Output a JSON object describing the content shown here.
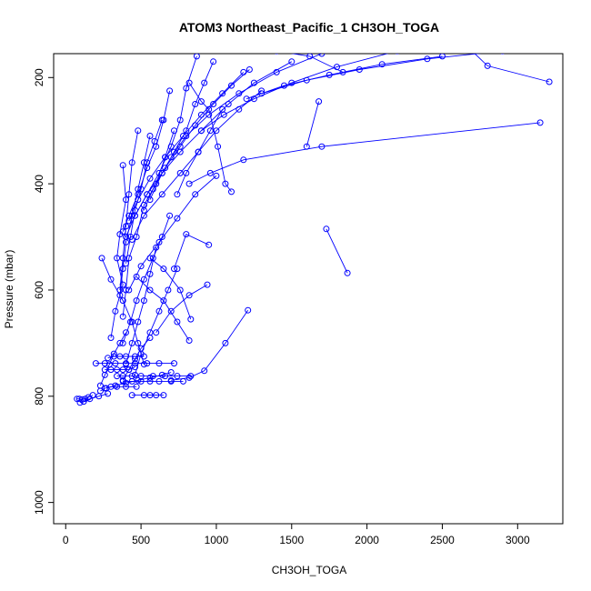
{
  "chart_data": {
    "type": "line",
    "title": "ATOM3 Northeast_Pacific_1 CH3OH_TOGA",
    "xlabel": "CH3OH_TOGA",
    "ylabel": "Pressure (mbar)",
    "xlim": [
      -80,
      3300
    ],
    "ylim": [
      1040,
      155
    ],
    "y_inverted": true,
    "x_ticks": [
      0,
      500,
      1000,
      1500,
      2000,
      2500,
      3000
    ],
    "y_ticks": [
      200,
      400,
      600,
      800,
      1000
    ],
    "grid": false,
    "legend": "none",
    "marker": "open-circle",
    "color": "#0000ff",
    "series": [
      {
        "values": [
          [
            3210,
            208
          ],
          [
            2800,
            178
          ],
          [
            2660,
            140
          ]
        ]
      },
      {
        "values": [
          [
            3150,
            285
          ],
          [
            1700,
            330
          ],
          [
            1180,
            355
          ],
          [
            960,
            380
          ],
          [
            820,
            400
          ]
        ]
      },
      {
        "values": [
          [
            1840,
            190
          ],
          [
            1620,
            160
          ],
          [
            1400,
            150
          ]
        ]
      },
      {
        "values": [
          [
            1680,
            245
          ],
          [
            1600,
            330
          ]
        ]
      },
      {
        "values": [
          [
            1870,
            568
          ],
          [
            1730,
            485
          ]
        ]
      },
      {
        "values": [
          [
            1210,
            638
          ],
          [
            1060,
            700
          ],
          [
            920,
            752
          ],
          [
            820,
            765
          ],
          [
            700,
            770
          ]
        ]
      },
      {
        "values": [
          [
            1100,
            415
          ],
          [
            1060,
            400
          ],
          [
            1010,
            330
          ],
          [
            950,
            260
          ],
          [
            900,
            245
          ],
          [
            820,
            210
          ]
        ]
      },
      {
        "values": [
          [
            950,
            515
          ],
          [
            800,
            495
          ],
          [
            720,
            560
          ]
        ]
      },
      {
        "values": [
          [
            940,
            590
          ],
          [
            820,
            610
          ],
          [
            700,
            640
          ],
          [
            600,
            680
          ]
        ]
      },
      {
        "values": [
          [
            830,
            655
          ],
          [
            760,
            600
          ],
          [
            650,
            560
          ],
          [
            560,
            540
          ]
        ]
      },
      {
        "values": [
          [
            820,
            695
          ],
          [
            740,
            660
          ],
          [
            650,
            620
          ],
          [
            560,
            600
          ],
          [
            470,
            575
          ]
        ]
      },
      {
        "values": [
          [
            1000,
            385
          ],
          [
            860,
            420
          ],
          [
            740,
            465
          ],
          [
            620,
            510
          ],
          [
            500,
            555
          ],
          [
            420,
            600
          ]
        ]
      },
      {
        "values": [
          [
            1300,
            225
          ],
          [
            1150,
            260
          ],
          [
            1000,
            300
          ],
          [
            880,
            340
          ],
          [
            760,
            380
          ],
          [
            640,
            420
          ],
          [
            520,
            460
          ],
          [
            440,
            505
          ]
        ]
      },
      {
        "values": [
          [
            1500,
            170
          ],
          [
            1250,
            210
          ],
          [
            1080,
            250
          ],
          [
            900,
            300
          ],
          [
            760,
            340
          ],
          [
            640,
            380
          ],
          [
            540,
            420
          ],
          [
            460,
            460
          ]
        ]
      },
      {
        "values": [
          [
            1180,
            190
          ],
          [
            1040,
            230
          ],
          [
            900,
            270
          ],
          [
            780,
            310
          ],
          [
            660,
            350
          ],
          [
            560,
            390
          ],
          [
            480,
            430
          ],
          [
            420,
            470
          ]
        ]
      },
      {
        "values": [
          [
            870,
            160
          ],
          [
            800,
            220
          ],
          [
            760,
            280
          ],
          [
            700,
            330
          ],
          [
            620,
            380
          ],
          [
            540,
            420
          ],
          [
            460,
            460
          ],
          [
            400,
            500
          ]
        ]
      },
      {
        "values": [
          [
            690,
            225
          ],
          [
            650,
            280
          ],
          [
            600,
            330
          ],
          [
            540,
            370
          ],
          [
            480,
            420
          ],
          [
            420,
            460
          ],
          [
            380,
            490
          ]
        ]
      },
      {
        "values": [
          [
            980,
            170
          ],
          [
            920,
            210
          ],
          [
            860,
            250
          ],
          [
            800,
            300
          ],
          [
            720,
            340
          ],
          [
            640,
            380
          ],
          [
            560,
            430
          ]
        ]
      },
      {
        "values": [
          [
            380,
            365
          ],
          [
            400,
            430
          ],
          [
            360,
            495
          ],
          [
            340,
            540
          ],
          [
            380,
            590
          ],
          [
            330,
            640
          ],
          [
            300,
            690
          ]
        ]
      },
      {
        "values": [
          [
            560,
            310
          ],
          [
            520,
            360
          ],
          [
            480,
            410
          ],
          [
            440,
            460
          ],
          [
            400,
            510
          ],
          [
            380,
            560
          ],
          [
            360,
            610
          ]
        ]
      },
      {
        "values": [
          [
            720,
            300
          ],
          [
            660,
            350
          ],
          [
            600,
            400
          ],
          [
            520,
            440
          ],
          [
            470,
            500
          ],
          [
            420,
            540
          ],
          [
            400,
            600
          ],
          [
            380,
            650
          ]
        ]
      },
      {
        "values": [
          [
            240,
            540
          ],
          [
            300,
            580
          ],
          [
            380,
            620
          ],
          [
            440,
            660
          ],
          [
            480,
            700
          ],
          [
            520,
            740
          ]
        ]
      },
      {
        "values": [
          [
            600,
            520
          ],
          [
            560,
            570
          ],
          [
            520,
            620
          ],
          [
            480,
            660
          ],
          [
            440,
            700
          ],
          [
            400,
            740
          ]
        ]
      },
      {
        "values": [
          [
            740,
            560
          ],
          [
            680,
            600
          ],
          [
            620,
            640
          ],
          [
            560,
            680
          ],
          [
            500,
            720
          ],
          [
            460,
            760
          ]
        ]
      },
      {
        "values": [
          [
            690,
            460
          ],
          [
            640,
            500
          ],
          [
            580,
            540
          ],
          [
            520,
            580
          ],
          [
            470,
            620
          ],
          [
            430,
            660
          ],
          [
            380,
            700
          ]
        ]
      },
      {
        "values": [
          [
            1220,
            185
          ],
          [
            1100,
            215
          ],
          [
            980,
            250
          ],
          [
            860,
            290
          ],
          [
            760,
            330
          ],
          [
            660,
            370
          ],
          [
            580,
            410
          ],
          [
            520,
            450
          ]
        ]
      },
      {
        "values": [
          [
            1700,
            155
          ],
          [
            1400,
            190
          ],
          [
            1150,
            230
          ],
          [
            950,
            270
          ],
          [
            800,
            310
          ],
          [
            700,
            350
          ]
        ]
      },
      {
        "values": [
          [
            2200,
            150
          ],
          [
            1800,
            180
          ],
          [
            1500,
            210
          ],
          [
            1250,
            240
          ],
          [
            1050,
            270
          ],
          [
            900,
            300
          ]
        ]
      },
      {
        "values": [
          [
            2500,
            160
          ],
          [
            2100,
            175
          ],
          [
            1750,
            195
          ],
          [
            1450,
            215
          ],
          [
            1200,
            240
          ]
        ]
      },
      {
        "values": [
          [
            2900,
            150
          ],
          [
            2400,
            165
          ],
          [
            1950,
            185
          ],
          [
            1600,
            205
          ],
          [
            1300,
            230
          ]
        ]
      },
      {
        "values": [
          [
            700,
            755
          ],
          [
            640,
            760
          ],
          [
            560,
            765
          ],
          [
            480,
            770
          ],
          [
            400,
            775
          ],
          [
            330,
            780
          ],
          [
            270,
            785
          ]
        ]
      },
      {
        "values": [
          [
            720,
            738
          ],
          [
            620,
            738
          ],
          [
            540,
            738
          ],
          [
            460,
            738
          ],
          [
            400,
            738
          ],
          [
            330,
            738
          ],
          [
            260,
            738
          ],
          [
            200,
            738
          ]
        ]
      },
      {
        "values": [
          [
            520,
            725
          ],
          [
            460,
            725
          ],
          [
            400,
            725
          ],
          [
            360,
            725
          ],
          [
            320,
            725
          ],
          [
            280,
            728
          ]
        ]
      },
      {
        "values": [
          [
            830,
            762
          ],
          [
            740,
            762
          ],
          [
            660,
            762
          ],
          [
            580,
            762
          ],
          [
            500,
            762
          ],
          [
            440,
            762
          ],
          [
            380,
            762
          ],
          [
            340,
            762
          ]
        ]
      },
      {
        "values": [
          [
            780,
            772
          ],
          [
            700,
            772
          ],
          [
            620,
            772
          ],
          [
            560,
            772
          ],
          [
            500,
            772
          ],
          [
            440,
            772
          ],
          [
            380,
            772
          ]
        ]
      },
      {
        "values": [
          [
            460,
            745
          ],
          [
            420,
            750
          ],
          [
            380,
            750
          ],
          [
            340,
            750
          ],
          [
            300,
            750
          ],
          [
            260,
            750
          ]
        ]
      },
      {
        "values": [
          [
            470,
            782
          ],
          [
            400,
            782
          ],
          [
            340,
            782
          ],
          [
            300,
            782
          ],
          [
            260,
            785
          ],
          [
            230,
            790
          ]
        ]
      },
      {
        "values": [
          [
            650,
            798
          ],
          [
            600,
            798
          ],
          [
            560,
            798
          ],
          [
            520,
            798
          ],
          [
            440,
            798
          ]
        ]
      },
      {
        "values": [
          [
            180,
            798
          ],
          [
            150,
            802
          ],
          [
            130,
            805
          ],
          [
            110,
            806
          ],
          [
            90,
            805
          ],
          [
            75,
            805
          ]
        ]
      },
      {
        "values": [
          [
            280,
            795
          ],
          [
            220,
            800
          ],
          [
            160,
            805
          ],
          [
            120,
            810
          ],
          [
            95,
            812
          ]
        ]
      },
      {
        "values": [
          [
            400,
            680
          ],
          [
            360,
            700
          ],
          [
            320,
            720
          ],
          [
            290,
            740
          ],
          [
            260,
            760
          ],
          [
            230,
            780
          ]
        ]
      },
      {
        "values": [
          [
            560,
            690
          ],
          [
            500,
            710
          ],
          [
            460,
            730
          ],
          [
            420,
            750
          ],
          [
            380,
            770
          ]
        ]
      },
      {
        "values": [
          [
            480,
            300
          ],
          [
            440,
            360
          ],
          [
            420,
            420
          ],
          [
            400,
            480
          ],
          [
            380,
            540
          ],
          [
            360,
            600
          ]
        ]
      },
      {
        "values": [
          [
            640,
            280
          ],
          [
            590,
            320
          ],
          [
            540,
            360
          ],
          [
            500,
            410
          ],
          [
            460,
            450
          ],
          [
            430,
            500
          ],
          [
            400,
            550
          ]
        ]
      },
      {
        "values": [
          [
            1040,
            260
          ],
          [
            960,
            300
          ],
          [
            880,
            340
          ],
          [
            800,
            380
          ],
          [
            740,
            420
          ]
        ]
      }
    ]
  }
}
